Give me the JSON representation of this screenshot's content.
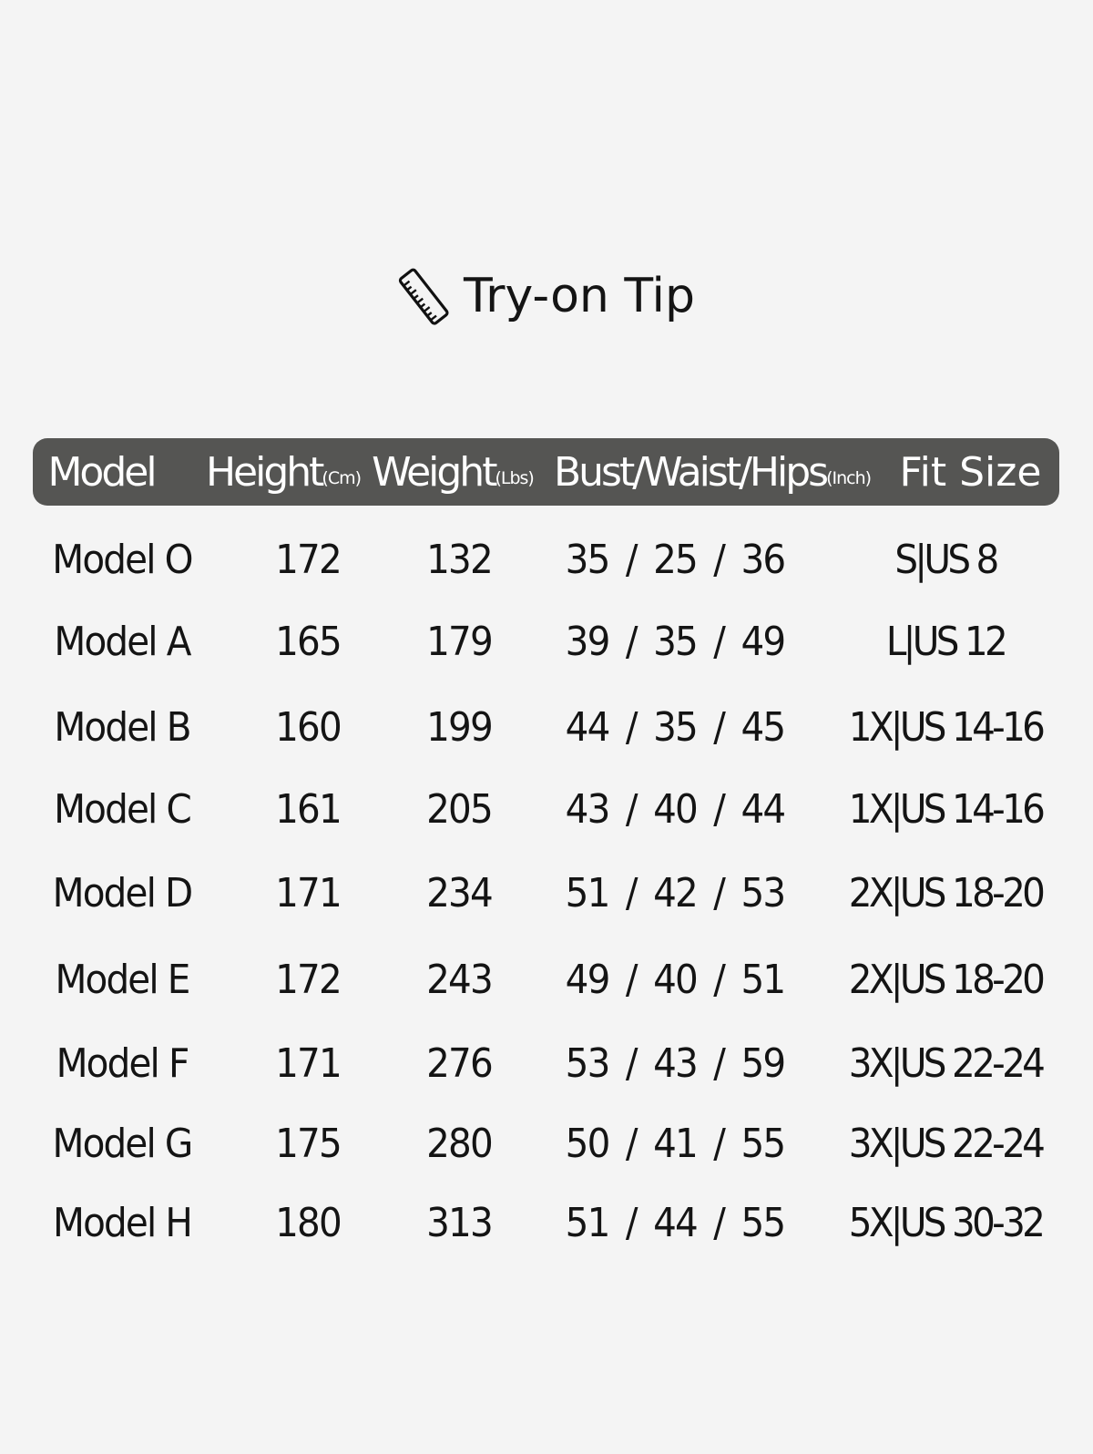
{
  "title": {
    "icon": "ruler-icon",
    "text": "Try-on Tip"
  },
  "header": {
    "model": "Model",
    "height": "Height",
    "height_unit": "(Cm)",
    "weight": "Weight",
    "weight_unit": "(Lbs)",
    "measure": "Bust/Waist/Hips",
    "measure_unit": "(Inch)",
    "fit": "Fit Size"
  },
  "colors": {
    "header_bg": "#555553",
    "page_bg": "#f4f4f4",
    "text": "#141414"
  },
  "rows": [
    {
      "model": "Model O",
      "height": "172",
      "weight": "132",
      "measure": "35 / 25 / 36",
      "fit": "S|US 8"
    },
    {
      "model": "Model A",
      "height": "165",
      "weight": "179",
      "measure": "39 / 35 / 49",
      "fit": "L|US 12"
    },
    {
      "model": "Model B",
      "height": "160",
      "weight": "199",
      "measure": "44 / 35 / 45",
      "fit": "1X|US 14-16"
    },
    {
      "model": "Model C",
      "height": "161",
      "weight": "205",
      "measure": "43 / 40 / 44",
      "fit": "1X|US 14-16"
    },
    {
      "model": "Model D",
      "height": "171",
      "weight": "234",
      "measure": "51 / 42 / 53",
      "fit": "2X|US 18-20"
    },
    {
      "model": "Model E",
      "height": "172",
      "weight": "243",
      "measure": "49 / 40 / 51",
      "fit": "2X|US 18-20"
    },
    {
      "model": "Model F",
      "height": "171",
      "weight": "276",
      "measure": "53 / 43 / 59",
      "fit": "3X|US 22-24"
    },
    {
      "model": "Model G",
      "height": "175",
      "weight": "280",
      "measure": "50 / 41 / 55",
      "fit": "3X|US 22-24"
    },
    {
      "model": "Model H",
      "height": "180",
      "weight": "313",
      "measure": "51 / 44 / 55",
      "fit": "5X|US 30-32"
    }
  ]
}
